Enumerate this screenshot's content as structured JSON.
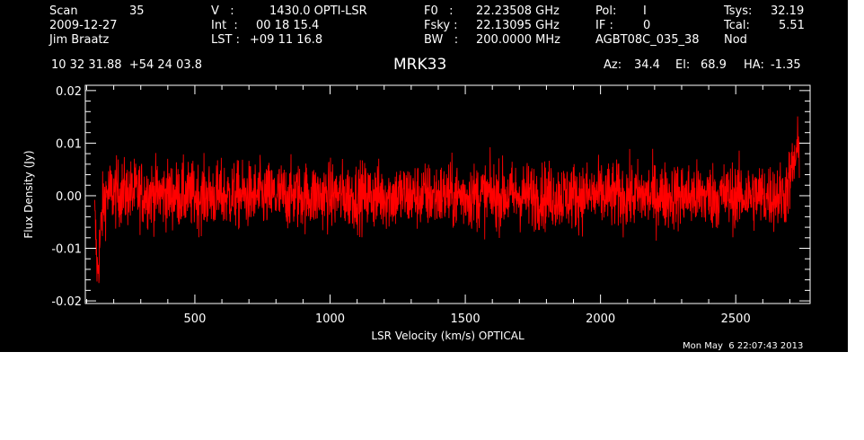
{
  "header": {
    "scan_label": "Scan",
    "scan_value": "35",
    "date": "2009-12-27",
    "observer": "Jim Braatz",
    "v_label": "V   :",
    "v_value": "1430.0 OPTI-LSR",
    "int_label": "Int  :",
    "int_value": "00 18 15.4",
    "lst_label": "LST :",
    "lst_value": "+09 11 16.8",
    "f0_label": "F0   :",
    "f0_value": "22.23508 GHz",
    "fsky_label": "Fsky :",
    "fsky_value": "22.13095 GHz",
    "bw_label": "BW   :",
    "bw_value": "200.0000 MHz",
    "pol_label": "Pol:",
    "pol_value": "I",
    "if_label": "IF :",
    "if_value": "0",
    "project": "AGBT08C_035_38",
    "tsys_label": "Tsys:",
    "tsys_value": "32.19",
    "tcal_label": "Tcal:",
    "tcal_value": "5.51",
    "mode": "Nod",
    "coords": "10 32 31.88  +54 24 03.8",
    "az_label": "Az:",
    "az_value": "34.4",
    "el_label": "El:",
    "el_value": "68.9",
    "ha_label": "HA:",
    "ha_value": "-1.35",
    "timestamp": "Mon May  6 22:07:43 2013"
  },
  "chart_data": {
    "type": "line",
    "title": "MRK33",
    "xlabel": "LSR Velocity (km/s) OPTICAL",
    "ylabel": "Flux Density (Jy)",
    "xlim": [
      95,
      2775
    ],
    "ylim": [
      -0.0205,
      0.021
    ],
    "xticks": [
      500,
      1000,
      1500,
      2000,
      2500
    ],
    "xtick_labels": [
      "500",
      "1000",
      "1500",
      "2000",
      "2500"
    ],
    "yticks": [
      -0.02,
      -0.01,
      0.0,
      0.01,
      0.02
    ],
    "ytick_labels": [
      "-0.02",
      "-0.01",
      "0.00",
      "0.01",
      "0.02"
    ],
    "series_color": "#ff0000",
    "axis_color": "#ffffff",
    "background": "#000000",
    "series": [
      {
        "x": [
          130,
          140,
          150,
          160,
          175,
          200,
          300,
          500,
          700,
          1000,
          1300,
          1500,
          1700,
          2000,
          2300,
          2500,
          2600,
          2680,
          2700,
          2720,
          2735
        ],
        "values": [
          -0.004,
          -0.015,
          -0.008,
          -0.002,
          0.0005,
          0.0005,
          0.0005,
          0.0,
          0.0,
          0.0,
          0.0,
          0.0,
          0.0,
          0.0,
          0.0,
          0.0,
          0.0,
          0.0,
          0.003,
          0.007,
          0.009
        ],
        "noise_rms": 0.0032
      }
    ]
  }
}
